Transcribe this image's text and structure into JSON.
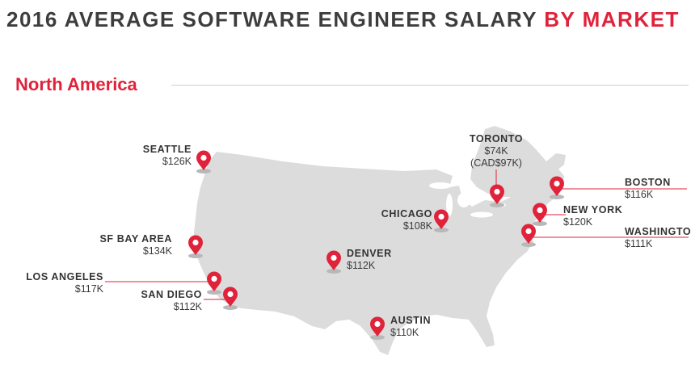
{
  "header": {
    "title_main": "2016 AVERAGE SOFTWARE ENGINEER SALARY",
    "title_accent": "BY MARKET"
  },
  "region": {
    "name": "North America"
  },
  "colors": {
    "accent": "#e0223a",
    "land": "#dcdcdc",
    "text": "#333333"
  },
  "markets": [
    {
      "city": "SEATTLE",
      "salary": "$126K"
    },
    {
      "city": "SF BAY AREA",
      "salary": "$134K"
    },
    {
      "city": "LOS ANGELES",
      "salary": "$117K"
    },
    {
      "city": "SAN DIEGO",
      "salary": "$112K"
    },
    {
      "city": "DENVER",
      "salary": "$112K"
    },
    {
      "city": "AUSTIN",
      "salary": "$110K"
    },
    {
      "city": "CHICAGO",
      "salary": "$108K"
    },
    {
      "city": "TORONTO",
      "salary": "$74K",
      "salary_alt": "(CAD$97K)"
    },
    {
      "city": "BOSTON",
      "salary": "$116K"
    },
    {
      "city": "NEW YORK",
      "salary": "$120K"
    },
    {
      "city": "WASHINGTON",
      "salary": "$111K"
    }
  ]
}
